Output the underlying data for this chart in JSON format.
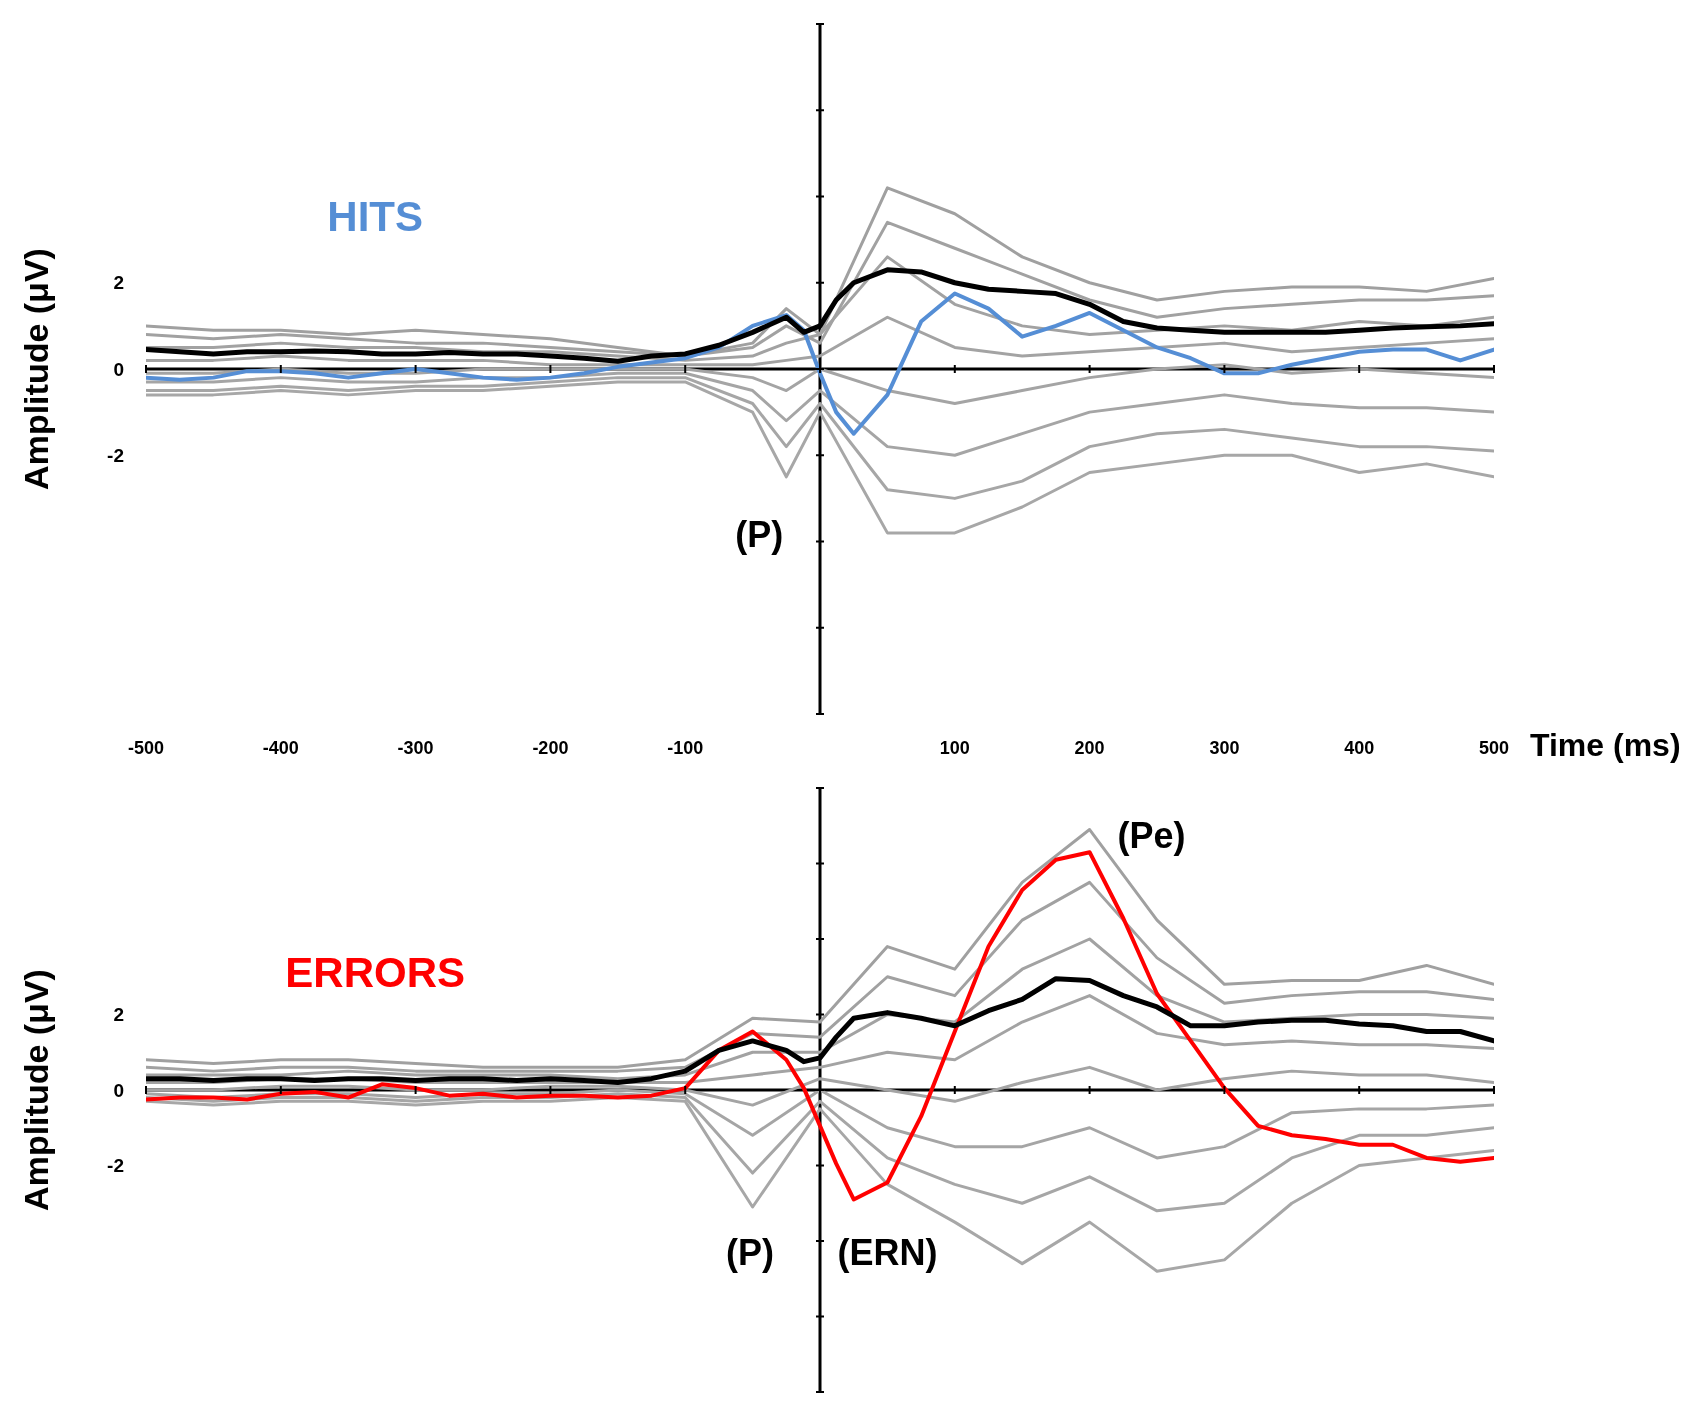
{
  "chart_data": [
    {
      "type": "line",
      "xlabel": "Time (ms)",
      "ylabel": "Amplitude (μV)",
      "marker": "none",
      "xlim": [
        -500,
        500
      ],
      "xticks": [
        -500,
        -400,
        -300,
        -200,
        -100,
        {
          "value": 0,
          "label": null
        },
        100,
        200,
        300,
        400,
        500
      ],
      "ylim": [
        -8,
        8
      ],
      "yticks": [
        {
          "value": -8,
          "label": null
        },
        {
          "value": -6,
          "label": null
        },
        {
          "value": -4,
          "label": null
        },
        -2,
        0,
        2,
        {
          "value": 4,
          "label": null
        },
        {
          "value": 6,
          "label": null
        },
        {
          "value": 8,
          "label": null
        }
      ],
      "annotations": [
        "(P)"
      ],
      "x": [
        -500,
        -475,
        -450,
        -425,
        -400,
        -375,
        -350,
        -325,
        -300,
        -275,
        -250,
        -225,
        -200,
        -175,
        -150,
        -125,
        -100,
        -75,
        -50,
        -25,
        -12,
        0,
        12,
        25,
        50,
        75,
        100,
        125,
        150,
        175,
        200,
        225,
        250,
        275,
        300,
        325,
        350,
        375,
        400,
        425,
        450,
        475,
        500
      ],
      "series": [
        {
          "color": "#a0a0a0",
          "x": [
            -500,
            -450,
            -400,
            -350,
            -300,
            -250,
            -200,
            -150,
            -100,
            -50,
            -25,
            0,
            50,
            100,
            150,
            200,
            250,
            300,
            350,
            400,
            450,
            500
          ],
          "values": [
            1.0,
            0.9,
            0.9,
            0.8,
            0.9,
            0.8,
            0.7,
            0.5,
            0.3,
            0.6,
            1.4,
            0.8,
            4.2,
            3.6,
            2.6,
            2.0,
            1.6,
            1.8,
            1.9,
            1.9,
            1.8,
            2.1
          ]
        },
        {
          "color": "#a1a1a1",
          "x": [
            -500,
            -450,
            -400,
            -350,
            -300,
            -250,
            -200,
            -150,
            -100,
            -50,
            -25,
            0,
            50,
            100,
            150,
            200,
            250,
            300,
            350,
            400,
            450,
            500
          ],
          "values": [
            0.8,
            0.7,
            0.8,
            0.7,
            0.6,
            0.6,
            0.5,
            0.4,
            0.3,
            0.5,
            1.0,
            0.6,
            3.4,
            2.8,
            2.2,
            1.6,
            1.2,
            1.4,
            1.5,
            1.6,
            1.6,
            1.7
          ]
        },
        {
          "color": "#a2a2a2",
          "x": [
            -500,
            -450,
            -400,
            -350,
            -300,
            -250,
            -200,
            -150,
            -100,
            -50,
            -25,
            0,
            50,
            100,
            150,
            200,
            250,
            300,
            350,
            400,
            450,
            500
          ],
          "values": [
            0.5,
            0.5,
            0.6,
            0.5,
            0.5,
            0.4,
            0.4,
            0.3,
            0.2,
            0.3,
            0.6,
            0.8,
            2.6,
            1.5,
            1.0,
            0.8,
            0.9,
            1.0,
            0.9,
            1.1,
            1.0,
            1.2
          ]
        },
        {
          "color": "#a3a3a3",
          "x": [
            -500,
            -450,
            -400,
            -350,
            -300,
            -250,
            -200,
            -150,
            -100,
            -50,
            -25,
            0,
            50,
            100,
            150,
            200,
            250,
            300,
            350,
            400,
            450,
            500
          ],
          "values": [
            0.2,
            0.2,
            0.3,
            0.2,
            0.2,
            0.2,
            0.1,
            0.1,
            0.1,
            0.1,
            0.2,
            0.3,
            1.2,
            0.5,
            0.3,
            0.4,
            0.5,
            0.6,
            0.4,
            0.5,
            0.6,
            0.7
          ]
        },
        {
          "color": "#a4a4a4",
          "x": [
            -500,
            -450,
            -400,
            -350,
            -300,
            -250,
            -200,
            -150,
            -100,
            -50,
            -25,
            0,
            50,
            100,
            150,
            200,
            250,
            300,
            350,
            400,
            450,
            500
          ],
          "values": [
            -0.1,
            -0.1,
            0.0,
            -0.1,
            -0.1,
            0.0,
            0.0,
            0.0,
            0.0,
            -0.2,
            -0.5,
            0.0,
            -0.5,
            -0.8,
            -0.5,
            -0.2,
            0.0,
            0.1,
            -0.1,
            0.0,
            -0.1,
            -0.2
          ]
        },
        {
          "color": "#a5a5a5",
          "x": [
            -500,
            -450,
            -400,
            -350,
            -300,
            -250,
            -200,
            -150,
            -100,
            -50,
            -25,
            0,
            50,
            100,
            150,
            200,
            250,
            300,
            350,
            400,
            450,
            500
          ],
          "values": [
            -0.3,
            -0.3,
            -0.2,
            -0.3,
            -0.3,
            -0.2,
            -0.2,
            -0.1,
            -0.1,
            -0.5,
            -1.2,
            -0.5,
            -1.8,
            -2.0,
            -1.5,
            -1.0,
            -0.8,
            -0.6,
            -0.8,
            -0.9,
            -0.9,
            -1.0
          ]
        },
        {
          "color": "#a6a6a6",
          "x": [
            -500,
            -450,
            -400,
            -350,
            -300,
            -250,
            -200,
            -150,
            -100,
            -50,
            -25,
            0,
            50,
            100,
            150,
            200,
            250,
            300,
            350,
            400,
            450,
            500
          ],
          "values": [
            -0.5,
            -0.5,
            -0.4,
            -0.5,
            -0.4,
            -0.4,
            -0.3,
            -0.2,
            -0.2,
            -0.8,
            -1.8,
            -0.8,
            -2.8,
            -3.0,
            -2.6,
            -1.8,
            -1.5,
            -1.4,
            -1.6,
            -1.8,
            -1.8,
            -1.9
          ]
        },
        {
          "color": "#a7a7a7",
          "x": [
            -500,
            -450,
            -400,
            -350,
            -300,
            -250,
            -200,
            -150,
            -100,
            -50,
            -25,
            0,
            50,
            100,
            150,
            200,
            250,
            300,
            350,
            400,
            450,
            500
          ],
          "values": [
            -0.6,
            -0.6,
            -0.5,
            -0.6,
            -0.5,
            -0.5,
            -0.4,
            -0.3,
            -0.3,
            -1.0,
            -2.5,
            -1.0,
            -3.8,
            -3.8,
            -3.2,
            -2.4,
            -2.2,
            -2.0,
            -2.0,
            -2.4,
            -2.2,
            -2.5
          ]
        },
        {
          "name": "HITS",
          "color": "#558ed5",
          "values": [
            -0.2,
            -0.25,
            -0.2,
            -0.05,
            -0.05,
            -0.1,
            -0.2,
            -0.1,
            0.0,
            -0.1,
            -0.2,
            -0.25,
            -0.2,
            -0.1,
            0.05,
            0.15,
            0.25,
            0.5,
            1.0,
            1.25,
            0.9,
            -0.1,
            -1.0,
            -1.5,
            -0.6,
            1.1,
            1.75,
            1.4,
            0.75,
            1.0,
            1.3,
            0.9,
            0.5,
            0.25,
            -0.1,
            -0.1,
            0.1,
            0.25,
            0.4,
            0.45,
            0.45,
            0.2,
            0.45
          ]
        },
        {
          "color": "#000000",
          "values": [
            0.45,
            0.4,
            0.35,
            0.4,
            0.4,
            0.42,
            0.4,
            0.35,
            0.35,
            0.38,
            0.35,
            0.35,
            0.3,
            0.25,
            0.18,
            0.3,
            0.35,
            0.55,
            0.85,
            1.2,
            0.85,
            1.0,
            1.6,
            2.0,
            2.3,
            2.25,
            2.0,
            1.85,
            1.8,
            1.75,
            1.5,
            1.1,
            0.95,
            0.9,
            0.85,
            0.85,
            0.85,
            0.85,
            0.9,
            0.95,
            0.98,
            1.0,
            1.05
          ]
        }
      ]
    },
    {
      "type": "line",
      "ylabel": "Amplitude (μV)",
      "marker": "none",
      "tick_labels": "y",
      "xlim": [
        -500,
        500
      ],
      "xticks": [
        -500,
        -400,
        -300,
        -200,
        -100,
        {
          "value": 0,
          "label": null
        },
        100,
        200,
        300,
        400,
        500
      ],
      "ylim": [
        -8,
        8
      ],
      "yticks": [
        {
          "value": -8,
          "label": null
        },
        {
          "value": -6,
          "label": null
        },
        {
          "value": -4,
          "label": null
        },
        -2,
        0,
        2,
        {
          "value": 4,
          "label": null
        },
        {
          "value": 6,
          "label": null
        },
        {
          "value": 8,
          "label": null
        }
      ],
      "annotations": [
        "(P)",
        "(ERN)",
        "(Pe)"
      ],
      "x": [
        -500,
        -475,
        -450,
        -425,
        -400,
        -375,
        -350,
        -325,
        -300,
        -275,
        -250,
        -225,
        -200,
        -175,
        -150,
        -125,
        -100,
        -75,
        -50,
        -25,
        -12,
        0,
        12,
        25,
        50,
        75,
        100,
        125,
        150,
        175,
        200,
        225,
        250,
        275,
        300,
        325,
        350,
        375,
        400,
        425,
        450,
        475,
        500
      ],
      "series": [
        {
          "color": "#a0a0a0",
          "x": [
            -500,
            -450,
            -400,
            -350,
            -300,
            -250,
            -200,
            -150,
            -100,
            -50,
            0,
            50,
            100,
            150,
            200,
            250,
            300,
            350,
            400,
            450,
            500
          ],
          "values": [
            0.8,
            0.7,
            0.8,
            0.8,
            0.7,
            0.6,
            0.6,
            0.6,
            0.8,
            1.9,
            1.8,
            3.8,
            3.2,
            5.5,
            6.9,
            4.5,
            2.8,
            2.9,
            2.9,
            3.3,
            2.8
          ]
        },
        {
          "color": "#a1a1a1",
          "x": [
            -500,
            -450,
            -400,
            -350,
            -300,
            -250,
            -200,
            -150,
            -100,
            -50,
            0,
            50,
            100,
            150,
            200,
            250,
            300,
            350,
            400,
            450,
            500
          ],
          "values": [
            0.6,
            0.5,
            0.6,
            0.6,
            0.5,
            0.5,
            0.5,
            0.5,
            0.6,
            1.5,
            1.4,
            3.0,
            2.5,
            4.5,
            5.5,
            3.5,
            2.3,
            2.5,
            2.6,
            2.6,
            2.4
          ]
        },
        {
          "color": "#a2a2a2",
          "x": [
            -500,
            -450,
            -400,
            -350,
            -300,
            -250,
            -200,
            -150,
            -100,
            -50,
            0,
            50,
            100,
            150,
            200,
            250,
            300,
            350,
            400,
            450,
            500
          ],
          "values": [
            0.4,
            0.4,
            0.4,
            0.5,
            0.4,
            0.4,
            0.4,
            0.3,
            0.4,
            1.0,
            1.0,
            2.0,
            1.8,
            3.2,
            4.0,
            2.5,
            1.8,
            1.9,
            2.0,
            2.0,
            1.9
          ]
        },
        {
          "color": "#a3a3a3",
          "x": [
            -500,
            -450,
            -400,
            -350,
            -300,
            -250,
            -200,
            -150,
            -100,
            -50,
            0,
            50,
            100,
            150,
            200,
            250,
            300,
            350,
            400,
            450,
            500
          ],
          "values": [
            0.2,
            0.2,
            0.3,
            0.3,
            0.2,
            0.2,
            0.2,
            0.2,
            0.2,
            0.4,
            0.6,
            1.0,
            0.8,
            1.8,
            2.5,
            1.5,
            1.2,
            1.3,
            1.2,
            1.2,
            1.1
          ]
        },
        {
          "color": "#a4a4a4",
          "x": [
            -500,
            -450,
            -400,
            -350,
            -300,
            -250,
            -200,
            -150,
            -100,
            -50,
            0,
            50,
            100,
            150,
            200,
            250,
            300,
            350,
            400,
            450,
            500
          ],
          "values": [
            0.0,
            0.0,
            0.1,
            0.1,
            0.0,
            0.0,
            0.1,
            0.1,
            0.0,
            -0.4,
            0.3,
            0.0,
            -0.3,
            0.2,
            0.6,
            0.0,
            0.3,
            0.5,
            0.4,
            0.4,
            0.2
          ]
        },
        {
          "color": "#a5a5a5",
          "x": [
            -500,
            -450,
            -400,
            -350,
            -300,
            -250,
            -200,
            -150,
            -100,
            -50,
            0,
            50,
            100,
            150,
            200,
            250,
            300,
            350,
            400,
            450,
            500
          ],
          "values": [
            -0.1,
            -0.2,
            -0.1,
            -0.1,
            -0.2,
            -0.1,
            -0.1,
            0.0,
            -0.1,
            -1.2,
            0.0,
            -1.0,
            -1.5,
            -1.5,
            -1.0,
            -1.8,
            -1.5,
            -0.6,
            -0.5,
            -0.5,
            -0.4
          ]
        },
        {
          "color": "#a6a6a6",
          "x": [
            -500,
            -450,
            -400,
            -350,
            -300,
            -250,
            -200,
            -150,
            -100,
            -50,
            0,
            50,
            100,
            150,
            200,
            250,
            300,
            350,
            400,
            450,
            500
          ],
          "values": [
            -0.2,
            -0.3,
            -0.2,
            -0.2,
            -0.3,
            -0.2,
            -0.2,
            -0.1,
            -0.2,
            -2.2,
            -0.3,
            -1.8,
            -2.5,
            -3.0,
            -2.3,
            -3.2,
            -3.0,
            -1.8,
            -1.2,
            -1.2,
            -1.0
          ]
        },
        {
          "color": "#a7a7a7",
          "x": [
            -500,
            -450,
            -400,
            -350,
            -300,
            -250,
            -200,
            -150,
            -100,
            -50,
            0,
            50,
            100,
            150,
            200,
            250,
            300,
            350,
            400,
            450,
            500
          ],
          "values": [
            -0.3,
            -0.4,
            -0.3,
            -0.3,
            -0.4,
            -0.3,
            -0.3,
            -0.2,
            -0.3,
            -3.1,
            -0.5,
            -2.5,
            -3.5,
            -4.6,
            -3.5,
            -4.8,
            -4.5,
            -3.0,
            -2.0,
            -1.8,
            -1.6
          ]
        },
        {
          "name": "ERRORS",
          "color": "#ff0000",
          "values": [
            -0.25,
            -0.2,
            -0.2,
            -0.25,
            -0.1,
            -0.05,
            -0.2,
            0.15,
            0.05,
            -0.15,
            -0.1,
            -0.2,
            -0.15,
            -0.15,
            -0.2,
            -0.15,
            0.05,
            1.05,
            1.55,
            0.8,
            0.05,
            -0.95,
            -1.95,
            -2.9,
            -2.45,
            -0.7,
            1.55,
            3.8,
            5.3,
            6.1,
            6.3,
            4.55,
            2.55,
            1.3,
            0.05,
            -0.95,
            -1.2,
            -1.3,
            -1.45,
            -1.45,
            -1.8,
            -1.9,
            -1.8
          ]
        },
        {
          "color": "#000000",
          "values": [
            0.3,
            0.3,
            0.25,
            0.3,
            0.3,
            0.25,
            0.3,
            0.3,
            0.25,
            0.3,
            0.3,
            0.25,
            0.3,
            0.25,
            0.2,
            0.3,
            0.5,
            1.05,
            1.3,
            1.05,
            0.75,
            0.85,
            1.4,
            1.9,
            2.05,
            1.9,
            1.7,
            2.1,
            2.4,
            2.95,
            2.9,
            2.5,
            2.2,
            1.7,
            1.7,
            1.8,
            1.85,
            1.85,
            1.75,
            1.7,
            1.55,
            1.55,
            1.3
          ]
        }
      ]
    }
  ]
}
